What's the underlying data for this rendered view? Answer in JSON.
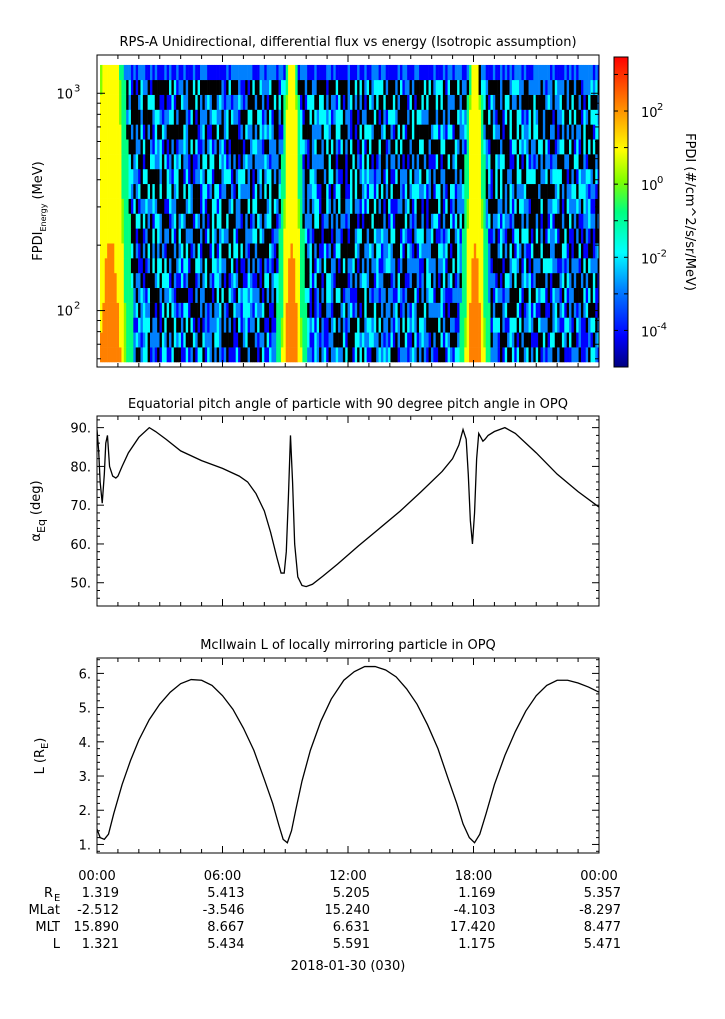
{
  "figure": {
    "date_label": "2018-01-30 (030)"
  },
  "chart_data": [
    {
      "type": "heatmap",
      "title": "RPS-A Unidirectional, differential flux vs energy (Isotropic assumption)",
      "ylabel_main": "FPDI",
      "ylabel_sub": "Energy",
      "ylabel_unit": "(MeV)",
      "yscale": "log",
      "ylim": [
        55,
        1500
      ],
      "ytick_labels": [
        {
          "base": "10",
          "exp": "2",
          "value": 100
        },
        {
          "base": "10",
          "exp": "3",
          "value": 1000
        }
      ],
      "energy_bins": 20,
      "time_columns": 210,
      "xlim_hours": [
        0,
        24
      ],
      "colorbar": {
        "label": "FPDI (#/cm^2/s/sr/MeV)",
        "scale": "log",
        "range": [
          1e-05,
          3000
        ],
        "tick_labels": [
          {
            "base": "10",
            "exp": "2",
            "value": 100
          },
          {
            "base": "10",
            "exp": "0",
            "value": 1
          },
          {
            "base": "10",
            "exp": "-2",
            "value": 0.01
          },
          {
            "base": "10",
            "exp": "-4",
            "value": 0.0001
          }
        ],
        "colors": [
          "#00007f",
          "#0000ff",
          "#0080ff",
          "#00ffff",
          "#00ff80",
          "#80ff00",
          "#ffff00",
          "#ff8000",
          "#ff0000"
        ]
      },
      "perigee_hours": [
        0.5,
        9.2,
        18.0
      ],
      "dropout_hours": [
        9.3,
        17.95,
        18.15
      ]
    },
    {
      "type": "line",
      "title": "Equatorial pitch angle of particle with 90 degree pitch angle in OPQ",
      "ylabel_greek": "α",
      "ylabel_sub": "Eq",
      "ylabel_unit": "(deg)",
      "ylim": [
        44,
        93
      ],
      "ytick_labels": [
        "50.",
        "60.",
        "70.",
        "80.",
        "90."
      ],
      "ytick_values": [
        50,
        60,
        70,
        80,
        90
      ],
      "series": [
        {
          "x": [
            0.0,
            0.08,
            0.15,
            0.25,
            0.35,
            0.42,
            0.5,
            0.6,
            0.75,
            0.9,
            1.0,
            1.2,
            1.5,
            2.0,
            2.5,
            2.8,
            3.3,
            4.0,
            5.0,
            6.0,
            6.8,
            7.2,
            7.6,
            8.0,
            8.3,
            8.6,
            8.8,
            8.95,
            9.05,
            9.15,
            9.25,
            9.35,
            9.45,
            9.6,
            9.8,
            10.0,
            10.3,
            10.8,
            11.5,
            12.5,
            13.5,
            14.5,
            15.5,
            16.5,
            17.0,
            17.3,
            17.5,
            17.65,
            17.75,
            17.85,
            17.95,
            18.05,
            18.15,
            18.25,
            18.35,
            18.45,
            18.55,
            18.7,
            19.0,
            19.5,
            20.0,
            21.0,
            22.0,
            23.0,
            24.0
          ],
          "y": [
            89.5,
            84,
            76,
            70.5,
            78,
            86,
            88,
            80,
            77.5,
            77,
            77.5,
            80,
            83.5,
            87.5,
            90,
            89,
            87,
            84,
            81.5,
            79.5,
            77.5,
            76,
            73,
            68.5,
            63,
            56.5,
            52.5,
            52.5,
            58,
            72,
            88,
            76,
            60,
            51.5,
            49.3,
            49,
            49.6,
            51.7,
            54.8,
            59.5,
            64,
            68.5,
            73.5,
            78.7,
            82,
            85.5,
            89.5,
            87,
            78,
            66,
            60,
            68,
            82,
            88.5,
            87.5,
            86.5,
            87,
            88,
            89,
            90,
            88.5,
            83.5,
            78,
            73.5,
            69.5
          ]
        }
      ]
    },
    {
      "type": "line",
      "title": "McIlwain L of locally mirroring particle in OPQ",
      "ylabel_main": "L",
      "ylabel_paren": "(R",
      "ylabel_sub": "E",
      "ylim": [
        0.75,
        6.45
      ],
      "ytick_labels": [
        "1.",
        "2.",
        "3.",
        "4.",
        "5.",
        "6."
      ],
      "ytick_values": [
        1,
        2,
        3,
        4,
        5,
        6
      ],
      "series": [
        {
          "x": [
            0.0,
            0.15,
            0.35,
            0.55,
            0.8,
            1.2,
            1.6,
            2.0,
            2.5,
            3.0,
            3.5,
            4.0,
            4.5,
            5.0,
            5.5,
            6.0,
            6.5,
            7.0,
            7.5,
            8.0,
            8.4,
            8.7,
            8.9,
            9.1,
            9.3,
            9.5,
            9.8,
            10.2,
            10.7,
            11.2,
            11.8,
            12.3,
            12.8,
            13.3,
            13.8,
            14.3,
            14.8,
            15.3,
            15.8,
            16.3,
            16.8,
            17.2,
            17.5,
            17.8,
            18.05,
            18.3,
            18.6,
            19.0,
            19.5,
            20.0,
            20.5,
            21.0,
            21.5,
            22.0,
            22.5,
            23.0,
            23.5,
            24.0
          ],
          "y": [
            1.45,
            1.2,
            1.15,
            1.3,
            1.9,
            2.75,
            3.45,
            4.05,
            4.65,
            5.1,
            5.45,
            5.7,
            5.82,
            5.8,
            5.65,
            5.35,
            4.95,
            4.4,
            3.75,
            2.9,
            2.2,
            1.55,
            1.15,
            1.05,
            1.4,
            2.0,
            2.85,
            3.75,
            4.6,
            5.25,
            5.8,
            6.05,
            6.2,
            6.2,
            6.1,
            5.9,
            5.55,
            5.1,
            4.5,
            3.8,
            2.9,
            2.2,
            1.6,
            1.2,
            1.05,
            1.3,
            1.9,
            2.75,
            3.6,
            4.3,
            4.9,
            5.35,
            5.65,
            5.8,
            5.8,
            5.72,
            5.6,
            5.45
          ]
        }
      ]
    }
  ],
  "time_axis": {
    "tick_labels": [
      "00:00",
      "06:00",
      "12:00",
      "18:00",
      "00:00"
    ],
    "tick_hours": [
      0,
      6,
      12,
      18,
      24
    ]
  },
  "ephemeris": {
    "row_labels": [
      {
        "main": "R",
        "sub": "E"
      },
      {
        "main": "MLat",
        "sub": ""
      },
      {
        "main": "MLT",
        "sub": ""
      },
      {
        "main": "L",
        "sub": ""
      }
    ],
    "columns": [
      {
        "values": [
          "1.319",
          "-2.512",
          "15.890",
          "1.321"
        ]
      },
      {
        "values": [
          "5.413",
          "-3.546",
          "8.667",
          "5.434"
        ]
      },
      {
        "values": [
          "5.205",
          "15.240",
          "6.631",
          "5.591"
        ]
      },
      {
        "values": [
          "1.169",
          "-4.103",
          "17.420",
          "1.175"
        ]
      },
      {
        "values": [
          "5.357",
          "-8.297",
          "8.477",
          "5.471"
        ]
      }
    ]
  }
}
